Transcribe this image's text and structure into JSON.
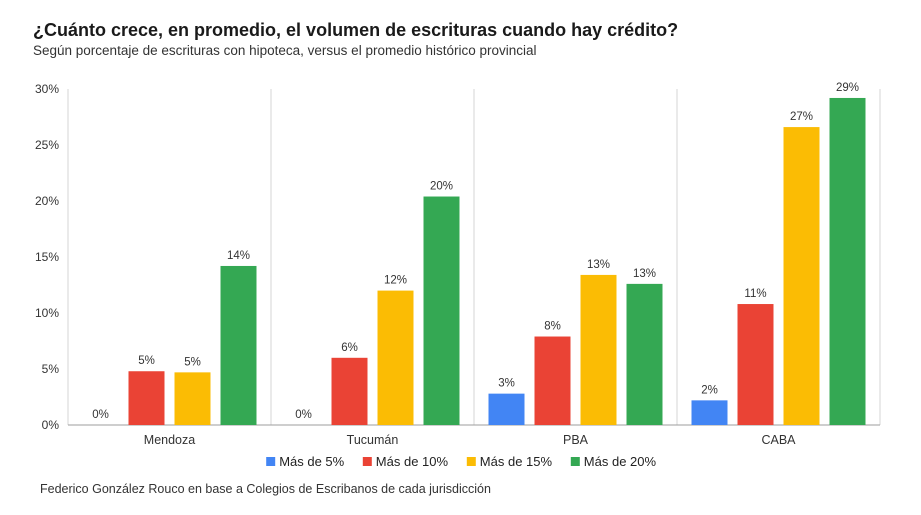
{
  "chart_data": {
    "type": "bar",
    "title": "¿Cuánto crece, en promedio, el volumen de escrituras cuando hay crédito?",
    "subtitle": "Según porcentaje de escrituras con hipoteca, versus el promedio histórico provincial",
    "categories": [
      "Mendoza",
      "Tucumán",
      "PBA",
      "CABA"
    ],
    "series": [
      {
        "name": "Más de 5%",
        "color": "#4285F4",
        "values": [
          0,
          0,
          2.8,
          2.2
        ],
        "labels": [
          "0%",
          "0%",
          "3%",
          "2%"
        ]
      },
      {
        "name": "Más de 10%",
        "color": "#EA4335",
        "values": [
          4.8,
          6.0,
          7.9,
          10.8
        ],
        "labels": [
          "5%",
          "6%",
          "8%",
          "11%"
        ]
      },
      {
        "name": "Más de 15%",
        "color": "#FBBC04",
        "values": [
          4.7,
          12.0,
          13.4,
          26.6
        ],
        "labels": [
          "5%",
          "12%",
          "13%",
          "27%"
        ]
      },
      {
        "name": "Más de 20%",
        "color": "#34A853",
        "values": [
          14.2,
          20.4,
          12.6,
          29.2
        ],
        "labels": [
          "14%",
          "20%",
          "13%",
          "29%"
        ]
      }
    ],
    "ylim": [
      0,
      30
    ],
    "yticks": [
      "0%",
      "5%",
      "10%",
      "15%",
      "20%",
      "25%",
      "30%"
    ],
    "xlabel": "",
    "ylabel": "",
    "legend_position": "bottom"
  },
  "source": "Federico González Rouco en base a Colegios de Escribanos de cada jurisdicción"
}
